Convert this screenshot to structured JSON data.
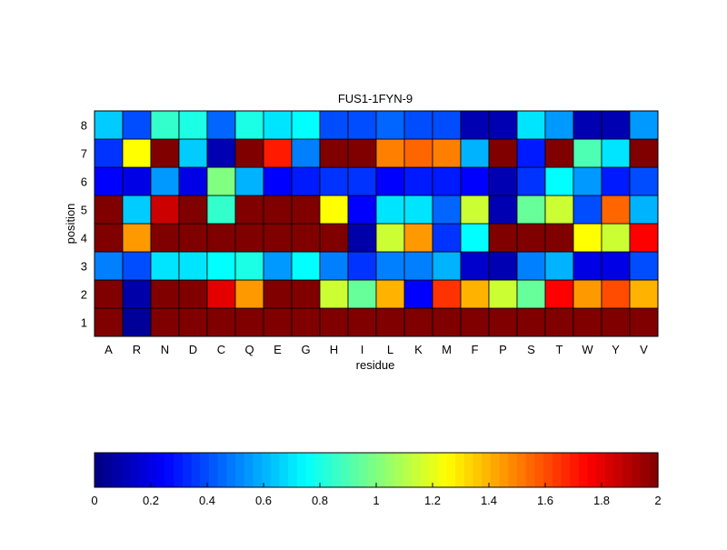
{
  "chart_data": {
    "type": "heatmap",
    "title": "FUS1-1FYN-9",
    "xlabel": "residue",
    "ylabel": "position",
    "x_categories": [
      "A",
      "R",
      "N",
      "D",
      "C",
      "Q",
      "E",
      "G",
      "H",
      "I",
      "L",
      "K",
      "M",
      "F",
      "P",
      "S",
      "T",
      "W",
      "Y",
      "V"
    ],
    "y_categories": [
      "1",
      "2",
      "3",
      "4",
      "5",
      "6",
      "7",
      "8"
    ],
    "values_by_position": {
      "1": [
        2.0,
        0.05,
        2.0,
        2.0,
        2.0,
        2.0,
        2.0,
        2.0,
        2.0,
        2.0,
        2.0,
        2.0,
        2.0,
        2.0,
        2.0,
        2.0,
        2.0,
        2.0,
        2.0,
        2.0
      ],
      "2": [
        2.0,
        0.08,
        2.0,
        2.0,
        1.8,
        1.45,
        2.0,
        2.0,
        1.15,
        0.95,
        1.4,
        0.25,
        1.65,
        1.4,
        1.15,
        0.95,
        1.75,
        1.45,
        1.6,
        1.4
      ],
      "3": [
        0.5,
        0.4,
        0.7,
        0.7,
        0.75,
        0.8,
        0.55,
        0.75,
        0.5,
        0.35,
        0.5,
        0.5,
        0.6,
        0.15,
        0.1,
        0.5,
        0.6,
        0.2,
        0.2,
        0.4
      ],
      "4": [
        2.0,
        1.45,
        2.0,
        2.0,
        2.0,
        2.0,
        2.0,
        2.0,
        2.0,
        0.08,
        1.15,
        1.45,
        0.35,
        0.75,
        2.0,
        2.0,
        2.0,
        1.25,
        1.15,
        1.75
      ],
      "5": [
        2.0,
        0.65,
        1.85,
        2.0,
        0.85,
        2.0,
        2.0,
        2.0,
        1.25,
        0.25,
        0.7,
        0.7,
        0.45,
        1.15,
        0.1,
        0.95,
        1.15,
        0.4,
        1.55,
        0.6
      ],
      "6": [
        0.25,
        0.2,
        0.55,
        0.2,
        1.0,
        0.6,
        0.25,
        0.3,
        0.35,
        0.35,
        0.25,
        0.3,
        0.3,
        0.25,
        0.1,
        0.35,
        0.75,
        0.55,
        0.3,
        0.4
      ],
      "7": [
        0.35,
        1.25,
        2.0,
        0.65,
        0.1,
        2.0,
        1.7,
        0.5,
        2.0,
        2.0,
        1.5,
        1.55,
        1.5,
        0.6,
        2.0,
        0.3,
        2.0,
        0.9,
        0.7,
        2.0
      ],
      "8": [
        0.65,
        0.4,
        0.85,
        0.8,
        0.45,
        0.8,
        0.7,
        0.75,
        0.4,
        0.4,
        0.45,
        0.4,
        0.4,
        0.1,
        0.1,
        0.7,
        0.55,
        0.1,
        0.1,
        0.55
      ]
    },
    "colorbar": {
      "colormap": "jet",
      "range": [
        0,
        2
      ],
      "ticks": [
        "0",
        "0.2",
        "0.4",
        "0.6",
        "0.8",
        "1",
        "1.2",
        "1.4",
        "1.6",
        "1.8",
        "2"
      ]
    },
    "grid": true,
    "legend": "none"
  }
}
